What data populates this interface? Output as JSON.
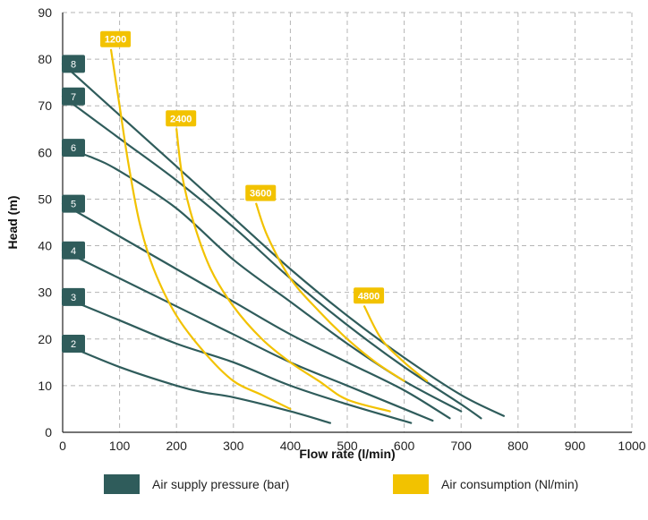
{
  "chart_data": {
    "type": "line",
    "xlabel": "Flow rate (l/min)",
    "ylabel": "Head (m)",
    "xlim": [
      0,
      1000
    ],
    "ylim": [
      0,
      90
    ],
    "xticks": [
      "0",
      "100",
      "200",
      "300",
      "400",
      "500",
      "600",
      "700",
      "800",
      "900",
      "1000"
    ],
    "yticks": [
      "0",
      "10",
      "20",
      "30",
      "40",
      "50",
      "60",
      "70",
      "80",
      "90"
    ],
    "grid": true,
    "legend_placement": "bottom",
    "colors": {
      "pressure": "#2f5c5b",
      "consumption": "#f2c200",
      "grid": "#b5b5b5"
    },
    "series": [
      {
        "group": "pressure",
        "label": "8",
        "points": [
          [
            0,
            79
          ],
          [
            100,
            68
          ],
          [
            200,
            57
          ],
          [
            300,
            46
          ],
          [
            400,
            35
          ],
          [
            500,
            25
          ],
          [
            600,
            16
          ],
          [
            700,
            8
          ],
          [
            775,
            3.5
          ]
        ]
      },
      {
        "group": "pressure",
        "label": "7",
        "points": [
          [
            0,
            72
          ],
          [
            100,
            63
          ],
          [
            200,
            54
          ],
          [
            300,
            44
          ],
          [
            400,
            33
          ],
          [
            500,
            23
          ],
          [
            600,
            14
          ],
          [
            700,
            6
          ],
          [
            735,
            3
          ]
        ]
      },
      {
        "group": "pressure",
        "label": "6",
        "points": [
          [
            0,
            61
          ],
          [
            50,
            59
          ],
          [
            100,
            56
          ],
          [
            200,
            48
          ],
          [
            300,
            37
          ],
          [
            400,
            28
          ],
          [
            500,
            19
          ],
          [
            600,
            11
          ],
          [
            700,
            4.5
          ]
        ]
      },
      {
        "group": "pressure",
        "label": "5",
        "points": [
          [
            0,
            49
          ],
          [
            100,
            42
          ],
          [
            200,
            35
          ],
          [
            300,
            28
          ],
          [
            400,
            21
          ],
          [
            500,
            15
          ],
          [
            600,
            9
          ],
          [
            680,
            3
          ]
        ]
      },
      {
        "group": "pressure",
        "label": "4",
        "points": [
          [
            0,
            39
          ],
          [
            100,
            33
          ],
          [
            200,
            27
          ],
          [
            300,
            21
          ],
          [
            400,
            15
          ],
          [
            500,
            10
          ],
          [
            600,
            5
          ],
          [
            650,
            2.5
          ]
        ]
      },
      {
        "group": "pressure",
        "label": "3",
        "points": [
          [
            0,
            29
          ],
          [
            100,
            24
          ],
          [
            200,
            19
          ],
          [
            300,
            15
          ],
          [
            400,
            10
          ],
          [
            500,
            6
          ],
          [
            612,
            2
          ]
        ]
      },
      {
        "group": "pressure",
        "label": "2",
        "points": [
          [
            0,
            19
          ],
          [
            100,
            14
          ],
          [
            200,
            10
          ],
          [
            250,
            8.5
          ],
          [
            300,
            7.5
          ],
          [
            400,
            4.5
          ],
          [
            470,
            2
          ]
        ]
      },
      {
        "group": "consumption",
        "label": "1200",
        "points": [
          [
            85,
            82
          ],
          [
            100,
            70
          ],
          [
            115,
            58
          ],
          [
            135,
            45
          ],
          [
            160,
            35
          ],
          [
            200,
            25
          ],
          [
            250,
            17
          ],
          [
            300,
            11
          ],
          [
            350,
            8
          ],
          [
            400,
            5
          ]
        ]
      },
      {
        "group": "consumption",
        "label": "2400",
        "points": [
          [
            200,
            65
          ],
          [
            210,
            55
          ],
          [
            230,
            45
          ],
          [
            260,
            35
          ],
          [
            300,
            27
          ],
          [
            350,
            20
          ],
          [
            400,
            15
          ],
          [
            450,
            11
          ],
          [
            500,
            7
          ],
          [
            575,
            4.5
          ]
        ]
      },
      {
        "group": "consumption",
        "label": "3600",
        "points": [
          [
            340,
            49
          ],
          [
            360,
            42
          ],
          [
            400,
            33
          ],
          [
            450,
            26
          ],
          [
            500,
            20
          ],
          [
            550,
            15
          ],
          [
            600,
            11
          ]
        ]
      },
      {
        "group": "consumption",
        "label": "4800",
        "points": [
          [
            530,
            27
          ],
          [
            560,
            20
          ],
          [
            600,
            15
          ],
          [
            640,
            11
          ]
        ]
      }
    ],
    "legend": [
      {
        "group": "pressure",
        "label": "Air supply pressure (bar)"
      },
      {
        "group": "consumption",
        "label": "Air consumption (Nl/min)"
      }
    ]
  }
}
